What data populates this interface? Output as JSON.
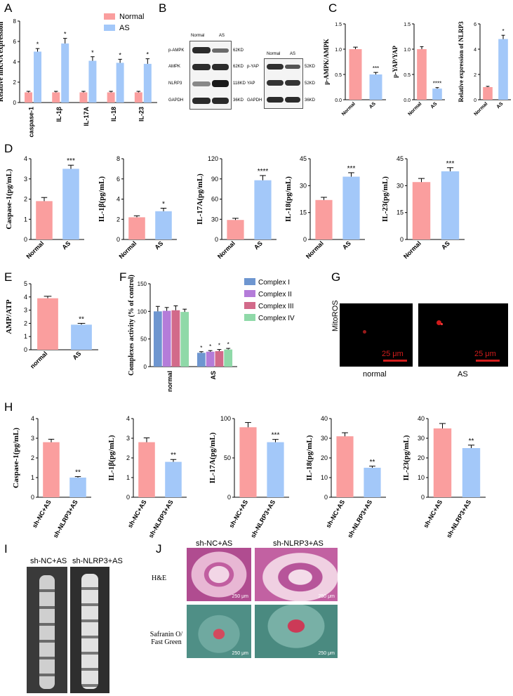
{
  "panel_letters": [
    "A",
    "B",
    "C",
    "D",
    "E",
    "F",
    "G",
    "H",
    "I",
    "J"
  ],
  "colors": {
    "normal": "#fa9e9e",
    "as": "#a3c8f9",
    "c1": "#6e96d0",
    "c2": "#b47cd9",
    "c3": "#d26a8a",
    "c4": "#8fd9a8"
  },
  "chart_data": [
    {
      "id": "A",
      "type": "bar",
      "categories": [
        "caspase-1",
        "IL-1β",
        "IL-17A",
        "IL-18",
        "IL-23"
      ],
      "ylabel": "Relative mRNA expression",
      "ylim": [
        0,
        8
      ],
      "yticks": [
        0,
        2,
        4,
        6,
        8
      ],
      "series": [
        {
          "name": "Normal",
          "values": [
            1.0,
            1.0,
            1.0,
            1.0,
            1.0
          ],
          "errors": [
            0.1,
            0.1,
            0.1,
            0.1,
            0.1
          ]
        },
        {
          "name": "AS",
          "values": [
            5.0,
            5.8,
            4.1,
            3.9,
            3.8
          ],
          "errors": [
            0.3,
            0.5,
            0.4,
            0.35,
            0.5
          ]
        }
      ],
      "sig": [
        "*",
        "*",
        "*",
        "*",
        "*"
      ],
      "legend": "top-right"
    },
    {
      "id": "C1",
      "type": "bar",
      "categories": [
        "Normal",
        "AS"
      ],
      "ylabel": "p-AMPK/AMPK",
      "ylim": [
        0,
        1.5
      ],
      "yticks": [
        0.0,
        0.5,
        1.0,
        1.5
      ],
      "tickfmt": "1",
      "values": [
        1.0,
        0.5
      ],
      "errors": [
        0.04,
        0.04
      ],
      "sig": [
        "",
        "***"
      ]
    },
    {
      "id": "C2",
      "type": "bar",
      "categories": [
        "Normal",
        "AS"
      ],
      "ylabel": "p-YAP/YAP",
      "ylim": [
        0,
        1.5
      ],
      "yticks": [
        0.0,
        0.5,
        1.0,
        1.5
      ],
      "tickfmt": "1",
      "values": [
        1.0,
        0.22
      ],
      "errors": [
        0.05,
        0.02
      ],
      "sig": [
        "",
        "****"
      ]
    },
    {
      "id": "C3",
      "type": "bar",
      "categories": [
        "Normal",
        "AS"
      ],
      "ylabel": "Relative expression of NLRP3",
      "ylim": [
        0,
        6
      ],
      "yticks": [
        0,
        2,
        4,
        6
      ],
      "values": [
        1.0,
        4.8
      ],
      "errors": [
        0.06,
        0.3
      ],
      "sig": [
        "",
        "*"
      ]
    },
    {
      "id": "D1",
      "type": "bar",
      "categories": [
        "Normal",
        "AS"
      ],
      "ylabel": "Caspase-1(pg/mL)",
      "ylim": [
        0,
        4
      ],
      "yticks": [
        0,
        1,
        2,
        3,
        4
      ],
      "values": [
        1.9,
        3.5
      ],
      "errors": [
        0.18,
        0.18
      ],
      "sig": [
        "",
        "***"
      ]
    },
    {
      "id": "D2",
      "type": "bar",
      "categories": [
        "Normal",
        "AS"
      ],
      "ylabel": "IL-1β(pg/mL)",
      "ylim": [
        0,
        8
      ],
      "yticks": [
        0,
        2,
        4,
        6,
        8
      ],
      "values": [
        2.2,
        2.8
      ],
      "errors": [
        0.15,
        0.3
      ],
      "sig": [
        "",
        "*"
      ]
    },
    {
      "id": "D3",
      "type": "bar",
      "categories": [
        "Normal",
        "AS"
      ],
      "ylabel": "IL-17A(pg/mL)",
      "ylim": [
        0,
        120
      ],
      "yticks": [
        0,
        30,
        60,
        90,
        120
      ],
      "values": [
        29,
        88
      ],
      "errors": [
        2.5,
        7
      ],
      "sig": [
        "",
        "****"
      ]
    },
    {
      "id": "D4",
      "type": "bar",
      "categories": [
        "Normal",
        "AS"
      ],
      "ylabel": "IL-18(pg/mL)",
      "ylim": [
        0,
        45
      ],
      "yticks": [
        0,
        15,
        30,
        45
      ],
      "values": [
        22,
        35
      ],
      "errors": [
        1.5,
        2.2
      ],
      "sig": [
        "",
        "***"
      ]
    },
    {
      "id": "D5",
      "type": "bar",
      "categories": [
        "Normal",
        "AS"
      ],
      "ylabel": "IL-23(pg/mL)",
      "ylim": [
        0,
        45
      ],
      "yticks": [
        0,
        15,
        30,
        45
      ],
      "values": [
        32,
        38
      ],
      "errors": [
        2,
        2
      ],
      "sig": [
        "",
        "***"
      ]
    },
    {
      "id": "E",
      "type": "bar",
      "categories": [
        "normal",
        "AS"
      ],
      "ylabel": "AMP/ATP",
      "ylim": [
        0,
        5
      ],
      "yticks": [
        0,
        1,
        2,
        3,
        4,
        5
      ],
      "values": [
        3.9,
        1.9
      ],
      "errors": [
        0.15,
        0.1
      ],
      "sig": [
        "",
        "**"
      ]
    },
    {
      "id": "F",
      "type": "bar",
      "categories": [
        "normal",
        "AS"
      ],
      "ylabel": "Complexes activity (% of control)",
      "ylim": [
        0,
        150
      ],
      "yticks": [
        0,
        50,
        100,
        150
      ],
      "series": [
        {
          "name": "Complex I",
          "values": [
            100,
            25
          ],
          "errors": [
            9,
            2
          ]
        },
        {
          "name": "Complex II",
          "values": [
            101,
            27
          ],
          "errors": [
            6,
            2
          ]
        },
        {
          "name": "Complex III",
          "values": [
            102,
            28
          ],
          "errors": [
            8,
            3
          ]
        },
        {
          "name": "Complex IV",
          "values": [
            99,
            31
          ],
          "errors": [
            5,
            2
          ]
        }
      ],
      "sig_as": [
        "*",
        "*",
        "*",
        "*"
      ],
      "legend": "right"
    },
    {
      "id": "H1",
      "type": "bar",
      "categories": [
        "sh-NC+AS",
        "sh-NLRP3+AS"
      ],
      "ylabel": "Caspase-1(pg/mL)",
      "ylim": [
        0,
        4
      ],
      "yticks": [
        0,
        1,
        2,
        3,
        4
      ],
      "values": [
        2.8,
        1.0
      ],
      "errors": [
        0.15,
        0.05
      ],
      "sig": [
        "",
        "**"
      ]
    },
    {
      "id": "H2",
      "type": "bar",
      "categories": [
        "sh-NC+AS",
        "sh-NLRP3+AS"
      ],
      "ylabel": "IL-1β(pg/mL)",
      "ylim": [
        0,
        4
      ],
      "yticks": [
        0,
        1,
        2,
        3,
        4
      ],
      "values": [
        2.8,
        1.8
      ],
      "errors": [
        0.22,
        0.12
      ],
      "sig": [
        "",
        "**"
      ]
    },
    {
      "id": "H3",
      "type": "bar",
      "categories": [
        "sh-NC+AS",
        "sh-NLRP3+AS"
      ],
      "ylabel": "IL-17A(pg/mL)",
      "ylim": [
        0,
        100
      ],
      "yticks": [
        0,
        50,
        100
      ],
      "values": [
        89,
        70
      ],
      "errors": [
        6,
        3.5
      ],
      "sig": [
        "",
        "***"
      ]
    },
    {
      "id": "H4",
      "type": "bar",
      "categories": [
        "sh-NC+AS",
        "sh-NLRP3+AS"
      ],
      "ylabel": "IL-18(pg/mL)",
      "ylim": [
        0,
        40
      ],
      "yticks": [
        0,
        10,
        20,
        30,
        40
      ],
      "values": [
        31,
        15
      ],
      "errors": [
        1.8,
        0.8
      ],
      "sig": [
        "",
        "**"
      ]
    },
    {
      "id": "H5",
      "type": "bar",
      "categories": [
        "sh-NC+AS",
        "sh-NLRP3+AS"
      ],
      "ylabel": "IL-23(pg/mL)",
      "ylim": [
        0,
        40
      ],
      "yticks": [
        0,
        10,
        20,
        30,
        40
      ],
      "values": [
        35,
        25
      ],
      "errors": [
        2.5,
        1.5
      ],
      "sig": [
        "",
        "**"
      ]
    }
  ],
  "blots": {
    "left_headers": [
      "Normal",
      "AS"
    ],
    "left_rows": [
      {
        "label": "p-AMPK",
        "kd": "62KD"
      },
      {
        "label": "AMPK",
        "kd": "62KD"
      },
      {
        "label": "NLRP3",
        "kd": "118KD"
      },
      {
        "label": "GAPDH",
        "kd": "36KD"
      }
    ],
    "right_headers": [
      "Normal",
      "AS"
    ],
    "right_rows": [
      {
        "label": "p-YAP",
        "kd": "52KD"
      },
      {
        "label": "YAP",
        "kd": "52KD"
      },
      {
        "label": "GAPDH",
        "kd": "36KD"
      }
    ]
  },
  "panel_g": {
    "ylabel": "MitoROS",
    "scale": "25 μm",
    "labels": [
      "normal",
      "AS"
    ]
  },
  "panel_i": {
    "labels": [
      "sh-NC+AS",
      "sh-NLRP3+AS"
    ]
  },
  "panel_j": {
    "cols": [
      "sh-NC+AS",
      "sh-NLRP3+AS"
    ],
    "rows": [
      "H&E",
      "Safranin O/\nFast Green"
    ],
    "scale": "250 μm"
  }
}
